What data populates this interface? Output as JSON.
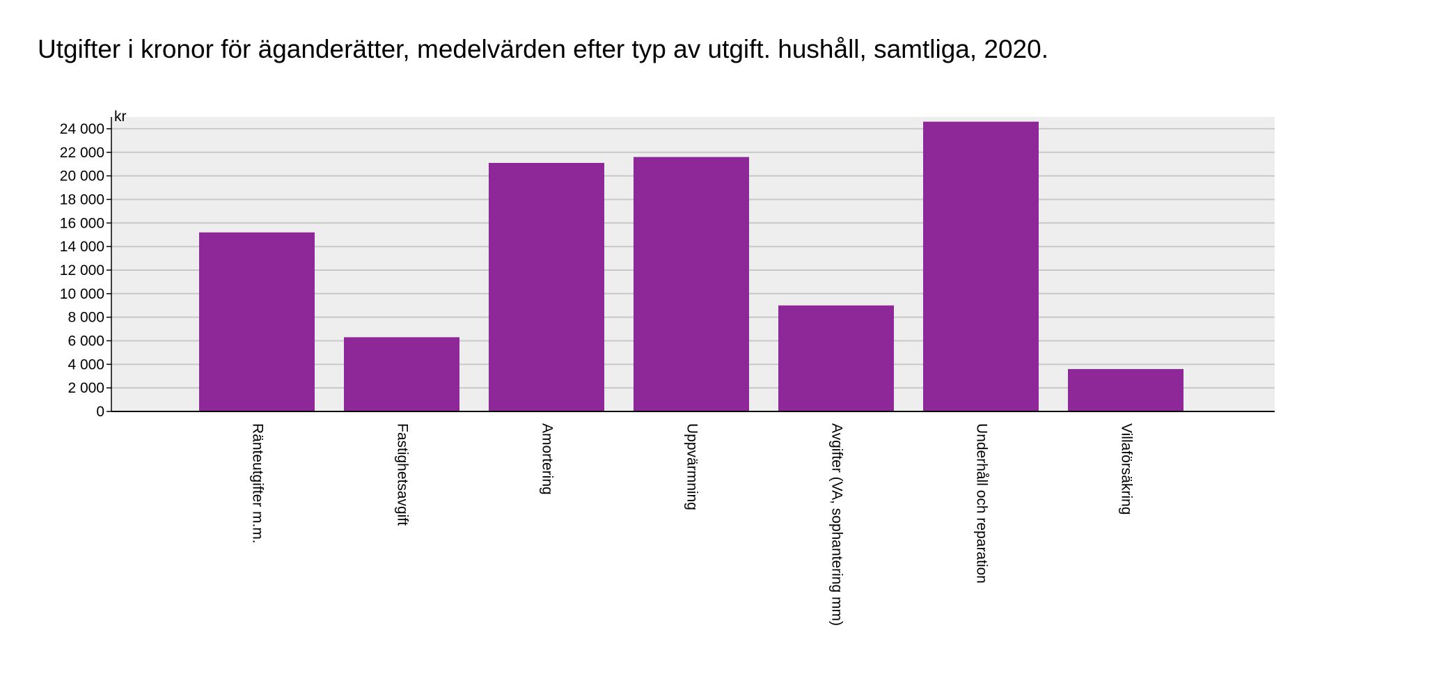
{
  "chart_data": {
    "type": "bar",
    "title": "Utgifter i kronor för äganderätter, medelvärden efter typ av utgift. hushåll, samtliga, 2020.",
    "unit_label": "kr",
    "categories": [
      "Ränteutgifter m.m.",
      "Fastighetsavgift",
      "Amortering",
      "Uppvärmning",
      "Avgifter (VA, sophantering mm)",
      "Underhåll och reparation",
      "Villaförsäkring"
    ],
    "values": [
      15200,
      6300,
      21100,
      21600,
      9000,
      24600,
      3600
    ],
    "ylim": [
      0,
      25000
    ],
    "yticks": [
      0,
      2000,
      4000,
      6000,
      8000,
      10000,
      12000,
      14000,
      16000,
      18000,
      20000,
      22000,
      24000
    ],
    "ytick_labels": [
      "0",
      "2 000",
      "4 000",
      "6 000",
      "8 000",
      "10 000",
      "12 000",
      "14 000",
      "16 000",
      "18 000",
      "20 000",
      "22 000",
      "24 000"
    ],
    "grid": true,
    "colors": {
      "bar": "#8e2899",
      "plot_background": "#eeeeee",
      "grid": "#c8c8c8",
      "axis": "#000000"
    }
  }
}
